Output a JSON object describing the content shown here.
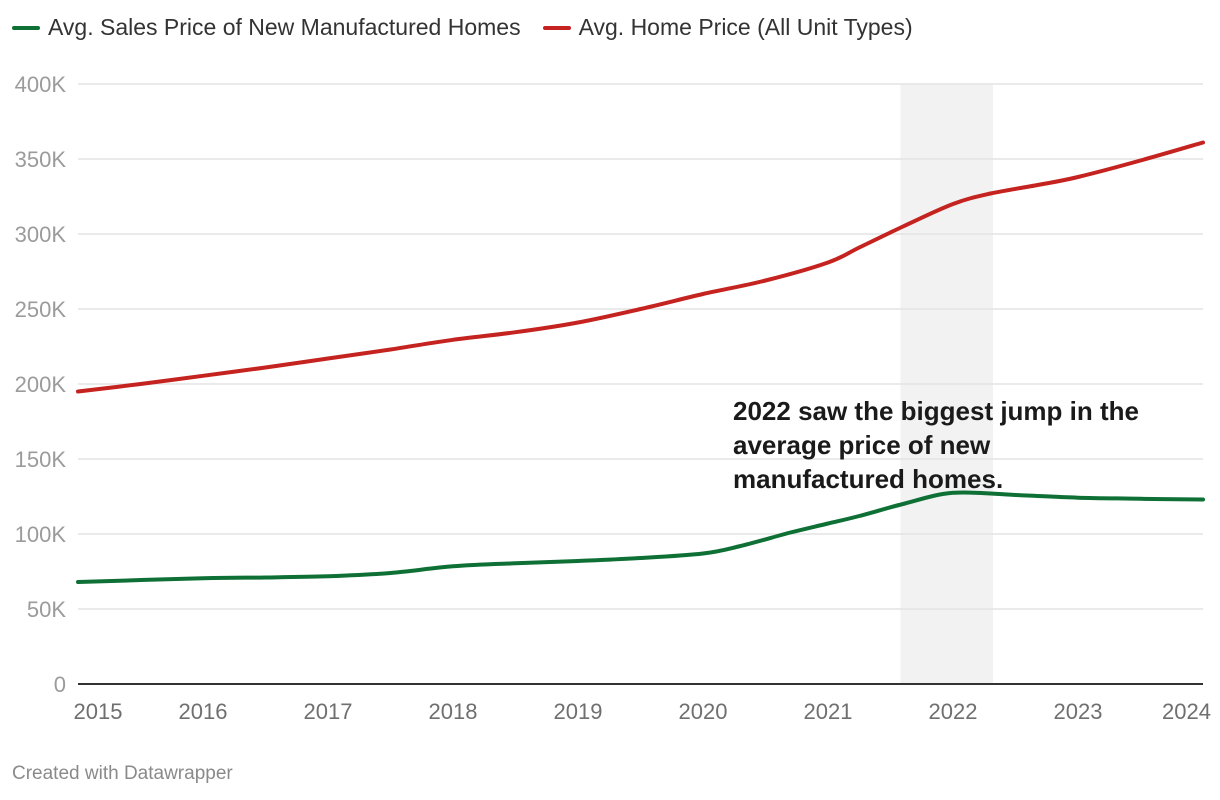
{
  "legend": {
    "items": [
      {
        "label": "Avg. Sales Price of New Manufactured Homes",
        "color": "#0e7035"
      },
      {
        "label": "Avg. Home Price (All Unit Types)",
        "color": "#c5231f"
      }
    ]
  },
  "footer": {
    "credit": "Created with Datawrapper"
  },
  "chart_data": {
    "type": "line",
    "title": "",
    "xlabel": "",
    "ylabel": "",
    "xlim": [
      2015,
      2024
    ],
    "ylim": [
      0,
      400000
    ],
    "grid": true,
    "legend_position": "top-left",
    "y_ticks": [
      {
        "value": 0,
        "label": "0"
      },
      {
        "value": 50000,
        "label": "50K"
      },
      {
        "value": 100000,
        "label": "100K"
      },
      {
        "value": 150000,
        "label": "150K"
      },
      {
        "value": 200000,
        "label": "200K"
      },
      {
        "value": 250000,
        "label": "250K"
      },
      {
        "value": 300000,
        "label": "300K"
      },
      {
        "value": 350000,
        "label": "350K"
      },
      {
        "value": 400000,
        "label": "400K"
      }
    ],
    "x_ticks": [
      {
        "value": 2015,
        "label": "2015"
      },
      {
        "value": 2016,
        "label": "2016"
      },
      {
        "value": 2017,
        "label": "2017"
      },
      {
        "value": 2018,
        "label": "2018"
      },
      {
        "value": 2019,
        "label": "2019"
      },
      {
        "value": 2020,
        "label": "2020"
      },
      {
        "value": 2021,
        "label": "2021"
      },
      {
        "value": 2022,
        "label": "2022"
      },
      {
        "value": 2023,
        "label": "2023"
      },
      {
        "value": 2024,
        "label": "2024"
      }
    ],
    "highlight_range": {
      "from": 2021.58,
      "to": 2022.32,
      "color": "#f2f2f2"
    },
    "annotation": {
      "lines": [
        "2022 saw the biggest jump in the",
        "average price of new",
        "manufactured homes."
      ],
      "x": 2020.2,
      "y": 176000,
      "color": "#1a1a1a"
    },
    "series": [
      {
        "name": "Avg. Sales Price of New Manufactured Homes",
        "color": "#0e7035",
        "points": [
          {
            "x": 2015.0,
            "y": 68000
          },
          {
            "x": 2016.0,
            "y": 70500
          },
          {
            "x": 2016.5,
            "y": 71000
          },
          {
            "x": 2017.0,
            "y": 71800
          },
          {
            "x": 2017.5,
            "y": 74000
          },
          {
            "x": 2018.0,
            "y": 78500
          },
          {
            "x": 2018.5,
            "y": 80500
          },
          {
            "x": 2019.0,
            "y": 82000
          },
          {
            "x": 2019.5,
            "y": 84000
          },
          {
            "x": 2020.0,
            "y": 87000
          },
          {
            "x": 2020.3,
            "y": 92000
          },
          {
            "x": 2020.7,
            "y": 101000
          },
          {
            "x": 2021.0,
            "y": 107000
          },
          {
            "x": 2021.25,
            "y": 112000
          },
          {
            "x": 2021.6,
            "y": 120000
          },
          {
            "x": 2022.0,
            "y": 127500
          },
          {
            "x": 2022.5,
            "y": 126000
          },
          {
            "x": 2023.0,
            "y": 124200
          },
          {
            "x": 2023.5,
            "y": 123500
          },
          {
            "x": 2024.0,
            "y": 123000
          }
        ]
      },
      {
        "name": "Avg. Home Price (All Unit Types)",
        "color": "#c5231f",
        "points": [
          {
            "x": 2015.0,
            "y": 195000
          },
          {
            "x": 2015.5,
            "y": 200000
          },
          {
            "x": 2016.0,
            "y": 205500
          },
          {
            "x": 2016.5,
            "y": 211000
          },
          {
            "x": 2017.0,
            "y": 217000
          },
          {
            "x": 2017.5,
            "y": 223000
          },
          {
            "x": 2018.0,
            "y": 229500
          },
          {
            "x": 2018.5,
            "y": 234500
          },
          {
            "x": 2019.0,
            "y": 241000
          },
          {
            "x": 2019.5,
            "y": 250000
          },
          {
            "x": 2020.0,
            "y": 260000
          },
          {
            "x": 2020.5,
            "y": 269000
          },
          {
            "x": 2021.0,
            "y": 281000
          },
          {
            "x": 2021.25,
            "y": 291000
          },
          {
            "x": 2021.6,
            "y": 305000
          },
          {
            "x": 2022.0,
            "y": 320000
          },
          {
            "x": 2022.3,
            "y": 327000
          },
          {
            "x": 2022.7,
            "y": 333000
          },
          {
            "x": 2023.0,
            "y": 338000
          },
          {
            "x": 2023.5,
            "y": 349000
          },
          {
            "x": 2024.0,
            "y": 361000
          }
        ]
      }
    ]
  }
}
